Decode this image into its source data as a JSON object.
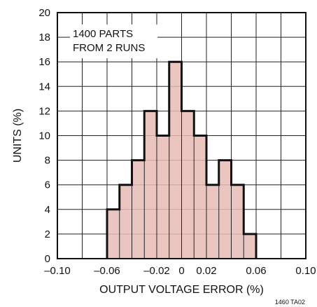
{
  "chart_data": {
    "type": "bar",
    "title": "",
    "xlabel": "OUTPUT VOLTAGE ERROR (%)",
    "ylabel": "UNITS (%)",
    "annotation_lines": [
      "1400 PARTS",
      "FROM 2 RUNS"
    ],
    "figure_id": "1460 TA02",
    "xlim": [
      -0.1,
      0.1
    ],
    "ylim": [
      0,
      20
    ],
    "grid": true,
    "x_ticks": [
      -0.1,
      -0.06,
      -0.02,
      0,
      0.02,
      0.06,
      0.1
    ],
    "x_tick_labels": [
      "–0.10",
      "–0.06",
      "–0.02",
      "0",
      "0.02",
      "0.06",
      "0.10"
    ],
    "y_ticks": [
      0,
      2,
      4,
      6,
      8,
      10,
      12,
      14,
      16,
      18,
      20
    ],
    "y_tick_labels": [
      "0",
      "2",
      "4",
      "6",
      "8",
      "10",
      "12",
      "14",
      "16",
      "18",
      "20"
    ],
    "bin_width": 0.01,
    "bin_starts": [
      -0.06,
      -0.05,
      -0.04,
      -0.03,
      -0.02,
      -0.01,
      0.0,
      0.01,
      0.02,
      0.03,
      0.04,
      0.05
    ],
    "values": [
      4,
      6,
      8,
      12,
      10,
      16,
      12,
      10,
      6,
      8,
      6,
      2
    ],
    "fill_color": "#e7bcb6",
    "outline_color": "#111111"
  }
}
